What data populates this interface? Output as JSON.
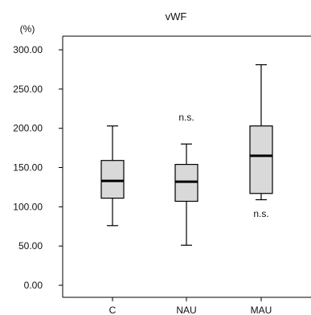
{
  "chart_data": {
    "type": "boxplot",
    "title": "vWF",
    "ylabel": "(%)",
    "ylim": [
      0,
      300
    ],
    "yticks": [
      "300.00",
      "250.00",
      "200.00",
      "150.00",
      "100.00",
      "50.00",
      "0.00"
    ],
    "ytick_values": [
      300,
      250,
      200,
      150,
      100,
      50,
      0
    ],
    "categories": [
      "C",
      "NAU",
      "MAU"
    ],
    "boxes": [
      {
        "category": "C",
        "whisker_low": 76,
        "q1": 111,
        "median": 133,
        "q3": 159,
        "whisker_high": 203
      },
      {
        "category": "NAU",
        "whisker_low": 51,
        "q1": 107,
        "median": 132,
        "q3": 154,
        "whisker_high": 180
      },
      {
        "category": "MAU",
        "whisker_low": 109,
        "q1": 117,
        "median": 165,
        "q3": 203,
        "whisker_high": 281
      }
    ],
    "annotations": [
      {
        "text": "n.s.",
        "category": "NAU",
        "value": 210
      },
      {
        "text": "n.s.",
        "category": "MAU",
        "value": 87
      }
    ],
    "colors": {
      "box_fill": "#d9d9d9",
      "line": "#000000",
      "background": "#ffffff"
    },
    "grid": false,
    "legend": "none"
  }
}
